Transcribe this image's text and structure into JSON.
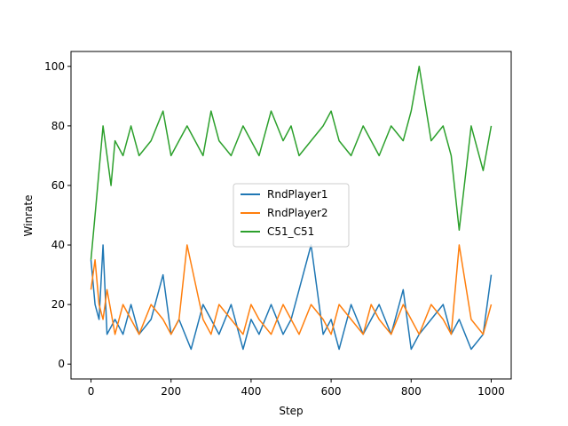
{
  "chart_data": {
    "type": "line",
    "title": "",
    "xlabel": "Step",
    "ylabel": "Winrate",
    "xlim": [
      -50,
      1050
    ],
    "ylim": [
      -5,
      105
    ],
    "xticks": [
      0,
      200,
      400,
      600,
      800,
      1000
    ],
    "yticks": [
      0,
      20,
      40,
      60,
      80,
      100
    ],
    "grid": false,
    "legend_position": "center",
    "series": [
      {
        "name": "RndPlayer1",
        "color": "#1f77b4",
        "x": [
          0,
          10,
          20,
          30,
          40,
          60,
          80,
          100,
          120,
          150,
          180,
          200,
          220,
          250,
          280,
          300,
          320,
          350,
          380,
          400,
          420,
          450,
          480,
          500,
          520,
          550,
          580,
          600,
          620,
          650,
          680,
          700,
          720,
          750,
          780,
          800,
          820,
          850,
          880,
          900,
          920,
          950,
          980,
          1000
        ],
        "y": [
          35,
          20,
          15,
          40,
          10,
          15,
          10,
          20,
          10,
          15,
          30,
          10,
          15,
          5,
          20,
          15,
          10,
          20,
          5,
          15,
          10,
          20,
          10,
          15,
          25,
          40,
          10,
          15,
          5,
          20,
          10,
          15,
          20,
          10,
          25,
          5,
          10,
          15,
          20,
          10,
          15,
          5,
          10,
          30
        ]
      },
      {
        "name": "RndPlayer2",
        "color": "#ff7f0e",
        "x": [
          0,
          10,
          20,
          30,
          40,
          60,
          80,
          100,
          120,
          150,
          180,
          200,
          220,
          240,
          280,
          300,
          320,
          350,
          380,
          400,
          420,
          450,
          480,
          500,
          520,
          550,
          580,
          600,
          620,
          650,
          680,
          700,
          720,
          750,
          780,
          800,
          820,
          850,
          880,
          900,
          920,
          950,
          980,
          1000
        ],
        "y": [
          25,
          35,
          20,
          15,
          25,
          10,
          20,
          15,
          10,
          20,
          15,
          10,
          15,
          40,
          15,
          10,
          20,
          15,
          10,
          20,
          15,
          10,
          20,
          15,
          10,
          20,
          15,
          10,
          20,
          15,
          10,
          20,
          15,
          10,
          20,
          15,
          10,
          20,
          15,
          10,
          40,
          15,
          10,
          20
        ]
      },
      {
        "name": "C51_C51",
        "color": "#2ca02c",
        "x": [
          0,
          10,
          20,
          30,
          40,
          50,
          60,
          80,
          100,
          120,
          150,
          180,
          200,
          220,
          240,
          260,
          280,
          300,
          320,
          350,
          380,
          400,
          420,
          450,
          480,
          500,
          520,
          550,
          580,
          600,
          620,
          650,
          680,
          700,
          720,
          750,
          780,
          800,
          820,
          850,
          880,
          900,
          920,
          950,
          980,
          1000
        ],
        "y": [
          35,
          50,
          65,
          80,
          70,
          60,
          75,
          70,
          80,
          70,
          75,
          85,
          70,
          75,
          80,
          75,
          70,
          85,
          75,
          70,
          80,
          75,
          70,
          85,
          75,
          80,
          70,
          75,
          80,
          85,
          75,
          70,
          80,
          75,
          70,
          80,
          75,
          85,
          100,
          75,
          80,
          70,
          45,
          80,
          65,
          80
        ]
      }
    ]
  }
}
